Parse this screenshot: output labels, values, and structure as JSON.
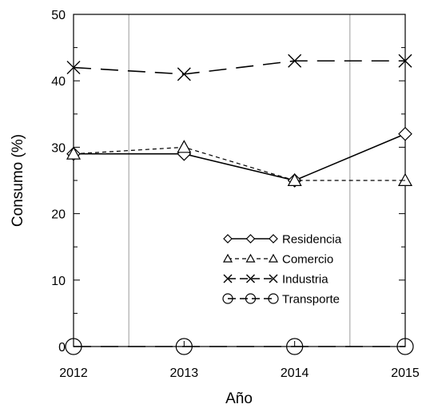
{
  "chart_data": {
    "type": "line",
    "xlabel": "Año",
    "ylabel": "Consumo (%)",
    "x": [
      2012,
      2013,
      2014,
      2015
    ],
    "xlim": [
      2012,
      2015
    ],
    "ylim": [
      0,
      50
    ],
    "y_major_ticks": [
      0,
      10,
      20,
      30,
      40,
      50
    ],
    "y_minor_step": 5,
    "x_ticks": [
      2012,
      2013,
      2014,
      2015
    ],
    "vertical_gridlines_at": [
      2012.5,
      2014.5
    ],
    "legend_position": "center-right",
    "series": [
      {
        "name": "Residencia",
        "values": [
          29,
          29,
          25,
          32
        ],
        "marker": "diamond",
        "line": "solid"
      },
      {
        "name": "Comercio",
        "values": [
          29,
          30,
          25,
          25
        ],
        "marker": "triangle",
        "line": "dashed"
      },
      {
        "name": "Industria",
        "values": [
          42,
          41,
          43,
          43
        ],
        "marker": "x",
        "line": "long-dash"
      },
      {
        "name": "Transporte",
        "values": [
          0,
          0,
          0,
          0
        ],
        "marker": "circle",
        "line": "long-dash"
      }
    ]
  }
}
